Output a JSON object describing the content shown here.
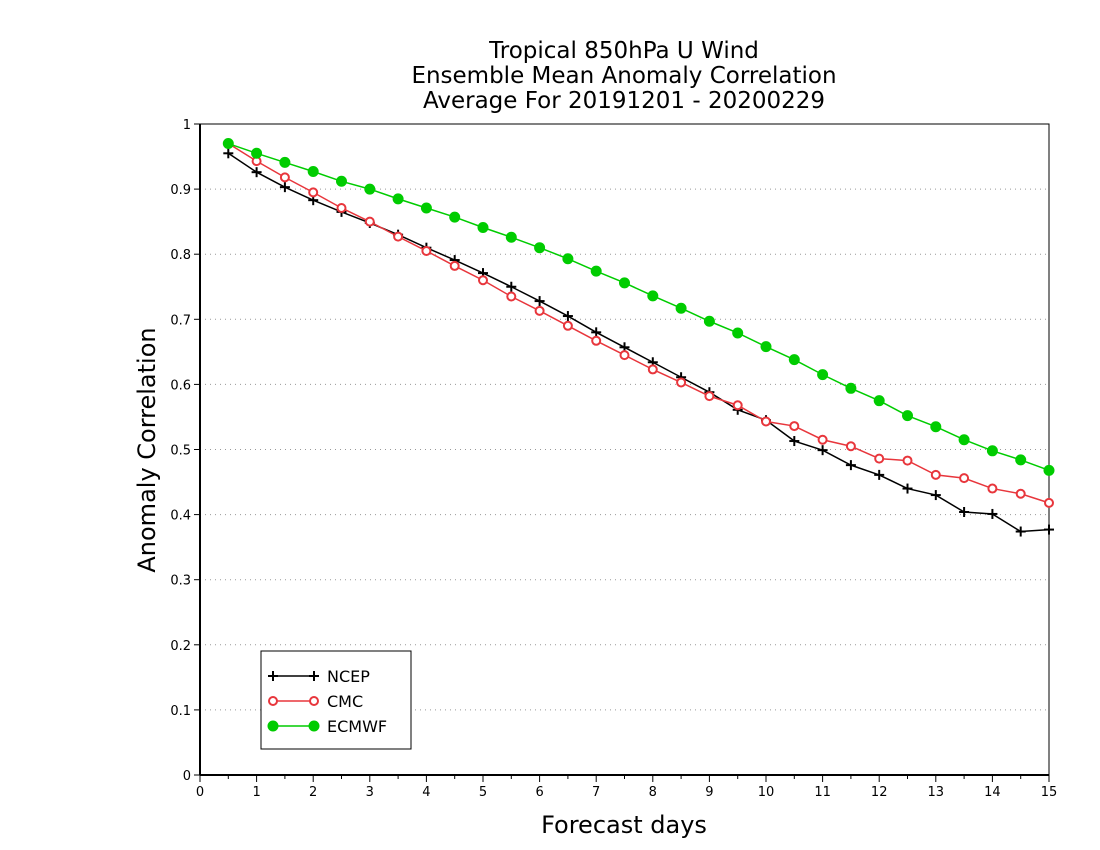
{
  "chart_data": {
    "type": "line",
    "title_lines": [
      "Tropical 850hPa U Wind",
      "Ensemble Mean Anomaly Correlation",
      "Average For 20191201 - 20200229"
    ],
    "xlabel": "Forecast days",
    "ylabel": "Anomaly Correlation",
    "xlim": [
      0,
      15
    ],
    "ylim": [
      0,
      1
    ],
    "x_ticks": [
      "0",
      "1",
      "2",
      "3",
      "4",
      "5",
      "6",
      "7",
      "8",
      "9",
      "10",
      "11",
      "12",
      "13",
      "14",
      "15"
    ],
    "y_ticks": [
      "0",
      "0.1",
      "0.2",
      "0.3",
      "0.4",
      "0.5",
      "0.6",
      "0.7",
      "0.8",
      "0.9",
      "1"
    ],
    "grid": true,
    "legend_position": "bottom-left",
    "x": [
      0.5,
      1,
      1.5,
      2,
      2.5,
      3,
      3.5,
      4,
      4.5,
      5,
      5.5,
      6,
      6.5,
      7,
      7.5,
      8,
      8.5,
      9,
      9.5,
      10,
      10.5,
      11,
      11.5,
      12,
      12.5,
      13,
      13.5,
      14,
      14.5,
      15
    ],
    "series": [
      {
        "name": "NCEP",
        "color": "#000000",
        "marker": "plus",
        "values": [
          0.955,
          0.926,
          0.903,
          0.883,
          0.865,
          0.848,
          0.83,
          0.81,
          0.791,
          0.771,
          0.75,
          0.728,
          0.705,
          0.68,
          0.657,
          0.634,
          0.611,
          0.588,
          0.561,
          0.545,
          0.513,
          0.499,
          0.476,
          0.461,
          0.44,
          0.43,
          0.404,
          0.401,
          0.374,
          0.377
        ]
      },
      {
        "name": "CMC",
        "color": "#e8363c",
        "marker": "open-circle",
        "values": [
          0.97,
          0.943,
          0.918,
          0.895,
          0.871,
          0.85,
          0.827,
          0.805,
          0.782,
          0.76,
          0.735,
          0.713,
          0.69,
          0.667,
          0.645,
          0.623,
          0.603,
          0.582,
          0.568,
          0.543,
          0.536,
          0.515,
          0.505,
          0.486,
          0.483,
          0.461,
          0.456,
          0.44,
          0.432,
          0.418
        ]
      },
      {
        "name": "ECMWF",
        "color": "#00cc00",
        "marker": "filled-circle",
        "values": [
          0.97,
          0.955,
          0.941,
          0.927,
          0.912,
          0.9,
          0.885,
          0.871,
          0.857,
          0.841,
          0.826,
          0.81,
          0.793,
          0.774,
          0.756,
          0.736,
          0.717,
          0.697,
          0.679,
          0.658,
          0.638,
          0.615,
          0.594,
          0.575,
          0.552,
          0.535,
          0.515,
          0.498,
          0.484,
          0.468
        ]
      }
    ]
  }
}
